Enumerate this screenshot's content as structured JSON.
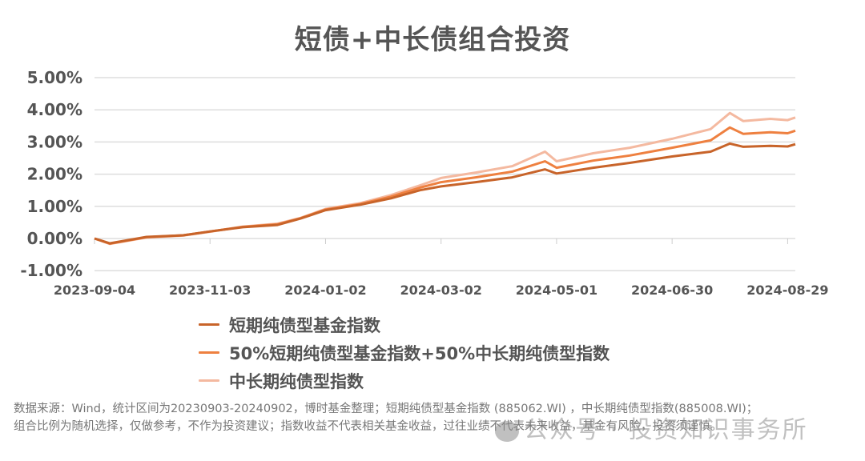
{
  "title": "短债+中长债组合投资",
  "chart_data": {
    "type": "line",
    "title": "短债+中长债组合投资",
    "xlabel": "",
    "ylabel": "",
    "ylim": [
      -1.0,
      5.0
    ],
    "y_ticks": [
      "5.00%",
      "4.00%",
      "3.00%",
      "2.00%",
      "1.00%",
      "0.00%",
      "-1.00%"
    ],
    "x_ticks": [
      "2023-09-04",
      "2023-11-03",
      "2024-01-02",
      "2024-03-02",
      "2024-05-01",
      "2024-06-30",
      "2024-08-29"
    ],
    "grid": true,
    "legend_position": "bottom",
    "x": [
      "2023-09-04",
      "2023-09-12",
      "2023-10-01",
      "2023-10-20",
      "2023-11-03",
      "2023-11-20",
      "2023-12-08",
      "2023-12-20",
      "2024-01-02",
      "2024-01-20",
      "2024-02-05",
      "2024-02-20",
      "2024-03-02",
      "2024-03-20",
      "2024-04-08",
      "2024-04-25",
      "2024-05-01",
      "2024-05-20",
      "2024-06-08",
      "2024-06-30",
      "2024-07-20",
      "2024-07-30",
      "2024-08-06",
      "2024-08-20",
      "2024-08-29",
      "2024-09-02"
    ],
    "series": [
      {
        "name": "短期纯债型基金指数",
        "color": "#C8642A",
        "values": [
          0.0,
          -0.15,
          0.05,
          0.1,
          0.22,
          0.35,
          0.42,
          0.62,
          0.88,
          1.05,
          1.25,
          1.5,
          1.62,
          1.75,
          1.9,
          2.15,
          2.02,
          2.2,
          2.35,
          2.55,
          2.7,
          2.95,
          2.85,
          2.88,
          2.86,
          2.93
        ]
      },
      {
        "name": "50%短期纯债型基金指数+50%中长期纯债型指数",
        "color": "#EE8040",
        "values": [
          0.0,
          -0.16,
          0.04,
          0.1,
          0.22,
          0.36,
          0.44,
          0.63,
          0.9,
          1.07,
          1.3,
          1.58,
          1.75,
          1.9,
          2.08,
          2.4,
          2.2,
          2.42,
          2.58,
          2.82,
          3.05,
          3.45,
          3.25,
          3.3,
          3.27,
          3.35
        ]
      },
      {
        "name": "中长期纯债型指数",
        "color": "#F4B9A0",
        "values": [
          0.0,
          -0.17,
          0.03,
          0.09,
          0.21,
          0.37,
          0.46,
          0.64,
          0.92,
          1.1,
          1.35,
          1.65,
          1.88,
          2.05,
          2.25,
          2.7,
          2.4,
          2.65,
          2.82,
          3.1,
          3.4,
          3.9,
          3.65,
          3.72,
          3.68,
          3.76
        ]
      }
    ]
  },
  "legend": [
    {
      "label": "短期纯债型基金指数",
      "color": "#C8642A"
    },
    {
      "label": "50%短期纯债型基金指数+50%中长期纯债型指数",
      "color": "#EE8040"
    },
    {
      "label": "中长期纯债型指数",
      "color": "#F4B9A0"
    }
  ],
  "footnote": {
    "line1": "数据来源：Wind，统计区间为20230903-20240902，博时基金整理；短期纯债型基金指数 (885062.WI) ，中长期纯债型指数(885008.WI)；",
    "line2": "组合比例为随机选择，仅做参考，不作为投资建议；指数收益不代表相关基金收益，过往业绩不代表未来收益，基金有风险，投资须谨慎。"
  },
  "watermark": "公众号 · 投资知识事务所"
}
